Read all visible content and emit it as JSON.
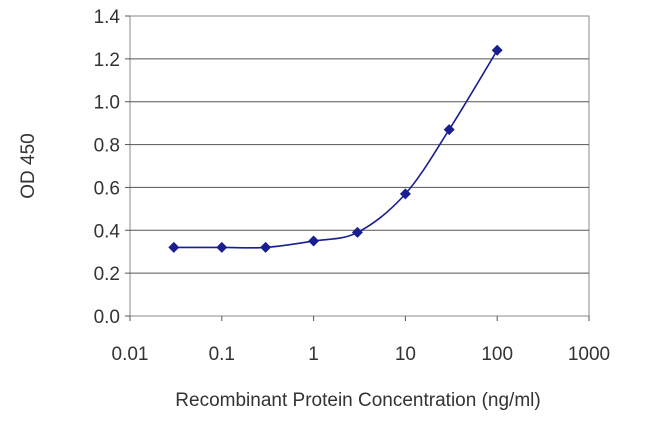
{
  "chart_data": {
    "type": "line",
    "title": "",
    "xlabel": "Recombinant Protein Concentration (ng/ml)",
    "ylabel": "OD 450",
    "x_scale": "log",
    "xlim": [
      0.01,
      1000
    ],
    "ylim": [
      0.0,
      1.4
    ],
    "x_ticks": [
      {
        "value": 0.01,
        "label": "0.01"
      },
      {
        "value": 0.1,
        "label": "0.1"
      },
      {
        "value": 1,
        "label": "1"
      },
      {
        "value": 10,
        "label": "10"
      },
      {
        "value": 100,
        "label": "100"
      },
      {
        "value": 1000,
        "label": "1000"
      }
    ],
    "y_ticks": [
      {
        "value": 0.0,
        "label": "0.0"
      },
      {
        "value": 0.2,
        "label": "0.2"
      },
      {
        "value": 0.4,
        "label": "0.4"
      },
      {
        "value": 0.6,
        "label": "0.6"
      },
      {
        "value": 0.8,
        "label": "0.8"
      },
      {
        "value": 1.0,
        "label": "1.0"
      },
      {
        "value": 1.2,
        "label": "1.2"
      },
      {
        "value": 1.4,
        "label": "1.4"
      }
    ],
    "grid": "horizontal",
    "legend": "none",
    "series": [
      {
        "color": "#1a1f8f",
        "marker": "diamond",
        "x": [
          0.03,
          0.1,
          0.3,
          1,
          3,
          10,
          30,
          100
        ],
        "y": [
          0.32,
          0.32,
          0.32,
          0.35,
          0.39,
          0.57,
          0.87,
          1.24
        ]
      }
    ]
  }
}
